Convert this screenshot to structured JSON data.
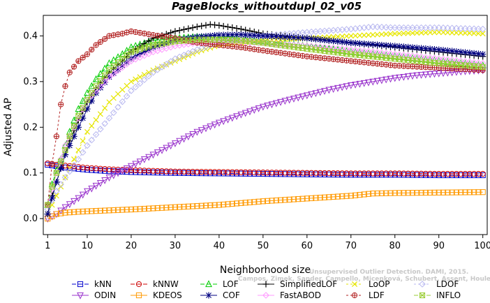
{
  "chart_data": {
    "type": "line",
    "title": "PageBlocks_withoutdupl_02_v05",
    "xlabel": "Neighborhood size",
    "ylabel": "Adjusted AP",
    "xlim": [
      0,
      101
    ],
    "ylim": [
      -0.035,
      0.445
    ],
    "xticks": [
      1,
      10,
      20,
      30,
      40,
      50,
      60,
      70,
      80,
      90,
      100
    ],
    "yticks": [
      0.0,
      0.1,
      0.2,
      0.3,
      0.4
    ],
    "ytick_labels": [
      "0.0",
      "0.1",
      "0.2",
      "0.3",
      "0.4"
    ],
    "grid": false,
    "legend_position": "bottom",
    "watermark": [
      "Unsupervised Outlier Detection. DAMI, 2015.",
      "Campos, Zimek, Sander, Campello, Micenková, Schubert, Assent, Houle"
    ],
    "series": [
      {
        "name": "kNN",
        "color": "#0000cc",
        "marker": "square",
        "dash": "6,3",
        "x": [
          1,
          3,
          5,
          10,
          15,
          20,
          30,
          40,
          50,
          60,
          70,
          80,
          90,
          100
        ],
        "y": [
          0.118,
          0.115,
          0.112,
          0.107,
          0.104,
          0.102,
          0.1,
          0.099,
          0.098,
          0.097,
          0.096,
          0.096,
          0.095,
          0.095
        ]
      },
      {
        "name": "kNNW",
        "color": "#cc0000",
        "marker": "circle",
        "dash": "6,3",
        "x": [
          1,
          3,
          5,
          10,
          15,
          20,
          30,
          40,
          50,
          60,
          70,
          80,
          90,
          100
        ],
        "y": [
          0.121,
          0.118,
          0.116,
          0.111,
          0.108,
          0.106,
          0.103,
          0.102,
          0.101,
          0.1,
          0.099,
          0.099,
          0.098,
          0.098
        ]
      },
      {
        "name": "LOF",
        "color": "#00cc00",
        "marker": "triangle",
        "dash": "6,3",
        "x": [
          1,
          2,
          3,
          4,
          5,
          6,
          8,
          10,
          12,
          15,
          18,
          20,
          25,
          30,
          35,
          40,
          45,
          50,
          60,
          70,
          80,
          90,
          100
        ],
        "y": [
          0.03,
          0.075,
          0.105,
          0.13,
          0.16,
          0.19,
          0.24,
          0.275,
          0.305,
          0.34,
          0.36,
          0.375,
          0.39,
          0.395,
          0.398,
          0.396,
          0.393,
          0.388,
          0.378,
          0.365,
          0.355,
          0.345,
          0.335
        ]
      },
      {
        "name": "SimplifiedLOF",
        "color": "#000000",
        "marker": "plus",
        "dash": "",
        "x": [
          1,
          2,
          3,
          4,
          5,
          6,
          8,
          10,
          12,
          15,
          18,
          20,
          25,
          30,
          35,
          38,
          40,
          45,
          50,
          60,
          70,
          80,
          90,
          100
        ],
        "y": [
          0.01,
          0.05,
          0.08,
          0.11,
          0.14,
          0.17,
          0.215,
          0.255,
          0.285,
          0.32,
          0.345,
          0.365,
          0.395,
          0.41,
          0.42,
          0.425,
          0.423,
          0.415,
          0.405,
          0.395,
          0.385,
          0.375,
          0.365,
          0.355
        ]
      },
      {
        "name": "LoOP",
        "color": "#e6e600",
        "marker": "x",
        "dash": "3,3",
        "x": [
          1,
          3,
          5,
          8,
          10,
          15,
          20,
          25,
          30,
          35,
          40,
          50,
          60,
          70,
          80,
          90,
          100
        ],
        "y": [
          0.01,
          0.05,
          0.09,
          0.15,
          0.19,
          0.255,
          0.3,
          0.325,
          0.345,
          0.365,
          0.38,
          0.39,
          0.395,
          0.4,
          0.405,
          0.408,
          0.405
        ]
      },
      {
        "name": "LDOF",
        "color": "#b8b8f0",
        "marker": "diamond",
        "dash": "3,3",
        "x": [
          1,
          3,
          5,
          8,
          10,
          15,
          20,
          25,
          30,
          35,
          40,
          50,
          60,
          70,
          75,
          80,
          90,
          100
        ],
        "y": [
          0.02,
          0.06,
          0.09,
          0.13,
          0.16,
          0.22,
          0.28,
          0.32,
          0.35,
          0.37,
          0.385,
          0.4,
          0.408,
          0.415,
          0.42,
          0.418,
          0.418,
          0.415
        ]
      },
      {
        "name": "ODIN",
        "color": "#9933cc",
        "marker": "triangle-down",
        "dash": "",
        "x": [
          1,
          3,
          5,
          8,
          10,
          15,
          20,
          25,
          30,
          35,
          40,
          45,
          50,
          55,
          60,
          65,
          70,
          75,
          80,
          85,
          90,
          95,
          100
        ],
        "y": [
          0.0,
          0.01,
          0.025,
          0.045,
          0.06,
          0.09,
          0.115,
          0.14,
          0.165,
          0.19,
          0.21,
          0.228,
          0.245,
          0.258,
          0.27,
          0.282,
          0.292,
          0.3,
          0.308,
          0.314,
          0.318,
          0.322,
          0.325
        ]
      },
      {
        "name": "KDEOS",
        "color": "#ff9900",
        "marker": "square",
        "dash": "",
        "x": [
          1,
          3,
          5,
          8,
          10,
          15,
          20,
          30,
          40,
          50,
          60,
          70,
          75,
          80,
          90,
          100
        ],
        "y": [
          0.0,
          0.01,
          0.013,
          0.015,
          0.016,
          0.018,
          0.02,
          0.025,
          0.03,
          0.038,
          0.044,
          0.05,
          0.055,
          0.056,
          0.057,
          0.058
        ]
      },
      {
        "name": "COF",
        "color": "#000080",
        "marker": "star",
        "dash": "",
        "x": [
          1,
          2,
          3,
          4,
          5,
          6,
          8,
          10,
          12,
          15,
          18,
          20,
          25,
          30,
          35,
          40,
          45,
          50,
          60,
          70,
          80,
          90,
          100
        ],
        "y": [
          0.01,
          0.045,
          0.08,
          0.11,
          0.14,
          0.16,
          0.2,
          0.24,
          0.275,
          0.31,
          0.335,
          0.35,
          0.375,
          0.39,
          0.398,
          0.402,
          0.403,
          0.4,
          0.395,
          0.385,
          0.378,
          0.37,
          0.36
        ]
      },
      {
        "name": "FastABOD",
        "color": "#ff99ff",
        "marker": "diamond",
        "dash": "",
        "x": [
          1,
          3,
          5,
          8,
          10,
          15,
          20,
          25,
          30,
          35,
          40,
          50,
          60,
          70,
          80,
          90,
          100
        ],
        "y": [
          0.03,
          0.1,
          0.16,
          0.22,
          0.26,
          0.31,
          0.345,
          0.365,
          0.378,
          0.385,
          0.388,
          0.385,
          0.378,
          0.37,
          0.36,
          0.35,
          0.34
        ]
      },
      {
        "name": "LDF",
        "color": "#b22222",
        "marker": "circle-plus",
        "dash": "3,3",
        "x": [
          1,
          2,
          3,
          4,
          5,
          6,
          8,
          10,
          12,
          15,
          18,
          20,
          25,
          30,
          35,
          40,
          45,
          50,
          60,
          70,
          80,
          90,
          100
        ],
        "y": [
          0.03,
          0.12,
          0.18,
          0.25,
          0.29,
          0.32,
          0.345,
          0.36,
          0.38,
          0.4,
          0.405,
          0.41,
          0.402,
          0.395,
          0.385,
          0.38,
          0.375,
          0.368,
          0.355,
          0.345,
          0.335,
          0.33,
          0.325
        ]
      },
      {
        "name": "INFLO",
        "color": "#99cc33",
        "marker": "square-x",
        "dash": "6,3",
        "x": [
          1,
          2,
          3,
          4,
          5,
          6,
          8,
          10,
          12,
          15,
          18,
          20,
          25,
          30,
          35,
          40,
          45,
          50,
          60,
          70,
          80,
          90,
          100
        ],
        "y": [
          0.03,
          0.07,
          0.1,
          0.125,
          0.15,
          0.18,
          0.225,
          0.26,
          0.29,
          0.325,
          0.35,
          0.365,
          0.38,
          0.388,
          0.392,
          0.392,
          0.39,
          0.385,
          0.372,
          0.36,
          0.35,
          0.34,
          0.332
        ]
      }
    ]
  }
}
